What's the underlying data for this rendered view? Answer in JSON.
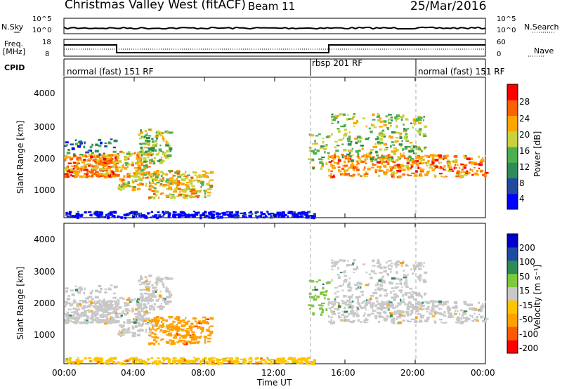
{
  "header": {
    "station": "Christmas Valley West (fitACF)",
    "beam": "Beam 11",
    "date": "25/Mar/2016"
  },
  "aux": {
    "nsky_label": "N.Sky",
    "nsearch_label": "N.Search",
    "noise_ticks": [
      "10^5",
      "10^0"
    ],
    "freq_label": "Freq.",
    "freq_unit": "[MHz]",
    "freq_ticks": [
      "18",
      "8"
    ],
    "nave_label": "Nave",
    "nave_ticks": [
      "60",
      "0"
    ],
    "cpid_label": "CPID"
  },
  "cpid": [
    {
      "label": "normal (fast) 151 RF",
      "start": 0,
      "end": 14
    },
    {
      "label": "rbsp 201 RF",
      "start": 14,
      "end": 20
    },
    {
      "label": "normal (fast) 151 RF",
      "start": 20,
      "end": 24
    }
  ],
  "colors": {
    "power": [
      "#0000ff",
      "#1e4aa0",
      "#2e8b57",
      "#4caf50",
      "#c8d23c",
      "#ffa500",
      "#ff6000",
      "#ff0000"
    ],
    "velocity": [
      "#ff0000",
      "#ff5a00",
      "#ffa000",
      "#ffc400",
      "#c8c8c8",
      "#7ec83c",
      "#2e8b57",
      "#1e4aa0",
      "#0000c8"
    ]
  },
  "chart_data": [
    {
      "type": "heatmap",
      "panel": "power",
      "ylabel": "Slant Range [km]",
      "colorbar_label": "Power [dB]",
      "colorbar_ticks": [
        "28",
        "24",
        "20",
        "16",
        "12",
        "8",
        "4"
      ],
      "yticks": [
        "4000",
        "3000",
        "2000",
        "1000"
      ],
      "ylim": [
        200,
        4600
      ],
      "xlim": [
        0,
        24
      ]
    },
    {
      "type": "heatmap",
      "panel": "velocity",
      "ylabel": "Slant Range [km]",
      "colorbar_label": "Velocity [m s⁻¹]",
      "colorbar_ticks": [
        "200",
        "100",
        "50",
        "15",
        "-15",
        "-50",
        "-100",
        "-200"
      ],
      "yticks": [
        "4000",
        "3000",
        "2000",
        "1000"
      ],
      "ylim": [
        200,
        4600
      ],
      "xlim": [
        0,
        24
      ]
    }
  ],
  "xaxis": {
    "label": "Time UT",
    "ticks": [
      "00:00",
      "04:00",
      "08:00",
      "12:00",
      "16:00",
      "20:00",
      "00:00"
    ]
  }
}
